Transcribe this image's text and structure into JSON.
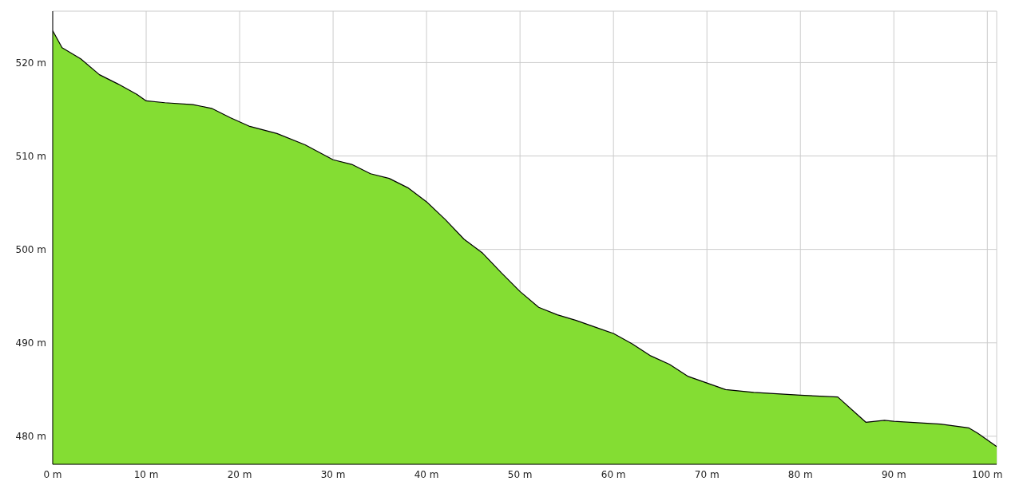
{
  "chart_data": {
    "type": "area",
    "color": "#84dd33",
    "x": [
      0,
      1,
      3,
      5,
      7,
      9,
      10,
      12,
      15,
      17,
      19,
      21,
      24,
      27,
      30,
      32,
      34,
      36,
      38,
      40,
      42,
      44,
      46,
      48,
      50,
      52,
      54,
      56,
      58,
      60,
      62,
      64,
      66,
      68,
      70,
      72,
      75,
      80,
      84,
      86,
      87,
      89,
      90,
      95,
      98,
      99,
      101
    ],
    "values": [
      523.4,
      521.6,
      520.4,
      518.7,
      517.7,
      516.6,
      515.9,
      515.7,
      515.5,
      515.1,
      514.1,
      513.2,
      512.4,
      511.2,
      509.6,
      509.1,
      508.1,
      507.6,
      506.6,
      505.1,
      503.2,
      501.1,
      499.6,
      497.5,
      495.5,
      493.8,
      493.0,
      492.4,
      491.7,
      491.0,
      489.9,
      488.6,
      487.7,
      486.4,
      485.7,
      485.0,
      484.7,
      484.4,
      484.2,
      482.4,
      481.5,
      481.7,
      481.6,
      481.3,
      480.9,
      480.3,
      478.9
    ],
    "xlim": [
      0,
      101
    ],
    "xticks": [
      {
        "value": 0,
        "label": "0 m"
      },
      {
        "value": 10,
        "label": "10 m"
      },
      {
        "value": 20,
        "label": "20 m"
      },
      {
        "value": 30,
        "label": "30 m"
      },
      {
        "value": 40,
        "label": "40 m"
      },
      {
        "value": 50,
        "label": "50 m"
      },
      {
        "value": 60,
        "label": "60 m"
      },
      {
        "value": 70,
        "label": "70 m"
      },
      {
        "value": 80,
        "label": "80 m"
      },
      {
        "value": 90,
        "label": "90 m"
      },
      {
        "value": 100,
        "label": "100 m"
      }
    ],
    "ylim": [
      477,
      525.5
    ],
    "yticks": [
      {
        "value": 480,
        "label": "480 m"
      },
      {
        "value": 490,
        "label": "490 m"
      },
      {
        "value": 500,
        "label": "500 m"
      },
      {
        "value": 510,
        "label": "510 m"
      },
      {
        "value": 520,
        "label": "520 m"
      }
    ],
    "grid": true
  }
}
